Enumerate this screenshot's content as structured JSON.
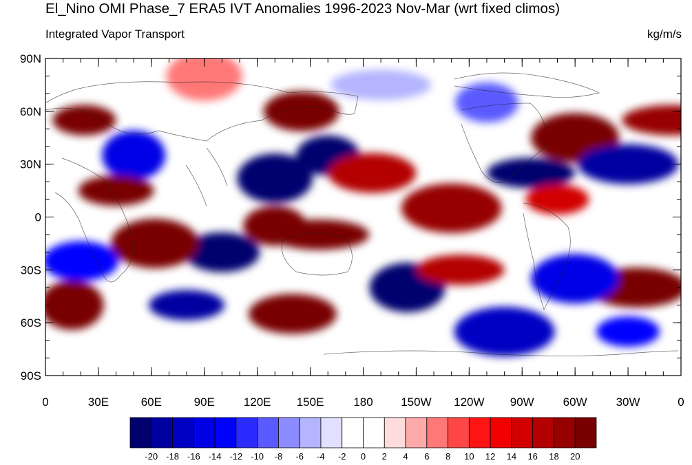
{
  "title": "El_Nino OMI Phase_7 ERA5 IVT Anomalies 1996-2023 Nov-Mar (wrt fixed climos)",
  "subtitle_left": "Integrated Vapor Transport",
  "subtitle_right": "kg/m/s",
  "lon_labels": [
    "0",
    "30E",
    "60E",
    "90E",
    "120E",
    "150E",
    "180",
    "150W",
    "120W",
    "90W",
    "60W",
    "30W",
    "0"
  ],
  "lat_labels": [
    "90N",
    "60N",
    "30N",
    "0",
    "30S",
    "60S",
    "90S"
  ],
  "colorbar": {
    "colors": [
      "#00006e",
      "#0000a0",
      "#0000c3",
      "#0000e6",
      "#0000ff",
      "#2b2bff",
      "#5a5aff",
      "#8c8cff",
      "#b4b4ff",
      "#e1e1ff",
      "#ffffff",
      "#ffffff",
      "#ffdcdc",
      "#ffaaaa",
      "#ff7878",
      "#ff4646",
      "#ff1414",
      "#f00000",
      "#d20000",
      "#b40000",
      "#960000",
      "#780000"
    ],
    "labels": [
      "-20",
      "-18",
      "-16",
      "-14",
      "-12",
      "-10",
      "-8",
      "-6",
      "-4",
      "-2",
      "0",
      "2",
      "4",
      "6",
      "8",
      "10",
      "12",
      "14",
      "16",
      "18",
      "20"
    ]
  },
  "chart_data": {
    "type": "heatmap",
    "title": "El_Nino OMI Phase_7 ERA5 IVT Anomalies 1996-2023 Nov-Mar (wrt fixed climos)",
    "subtitle": "Integrated Vapor Transport",
    "units": "kg/m/s",
    "xlim": [
      0,
      360
    ],
    "ylim": [
      -90,
      90
    ],
    "levels": [
      -20,
      -18,
      -16,
      -14,
      -12,
      -10,
      -8,
      -6,
      -4,
      -2,
      0,
      2,
      4,
      6,
      8,
      10,
      12,
      14,
      16,
      18,
      20
    ],
    "regions": [
      {
        "lon": 22,
        "lat": 55,
        "value": 22
      },
      {
        "lon": 145,
        "lat": 60,
        "value": 22
      },
      {
        "lon": 300,
        "lat": 45,
        "value": 20
      },
      {
        "lon": 355,
        "lat": 55,
        "value": 18
      },
      {
        "lon": 160,
        "lat": 35,
        "value": -22
      },
      {
        "lon": 130,
        "lat": 22,
        "value": -22
      },
      {
        "lon": 275,
        "lat": 25,
        "value": -22
      },
      {
        "lon": 330,
        "lat": 30,
        "value": -20
      },
      {
        "lon": 50,
        "lat": 35,
        "value": -16
      },
      {
        "lon": 40,
        "lat": 15,
        "value": 20
      },
      {
        "lon": 185,
        "lat": 25,
        "value": 16
      },
      {
        "lon": 230,
        "lat": 5,
        "value": 18
      },
      {
        "lon": 290,
        "lat": 10,
        "value": 14
      },
      {
        "lon": 100,
        "lat": -20,
        "value": -22
      },
      {
        "lon": 62,
        "lat": -15,
        "value": 22
      },
      {
        "lon": 155,
        "lat": -10,
        "value": 22
      },
      {
        "lon": 130,
        "lat": -5,
        "value": 20
      },
      {
        "lon": 205,
        "lat": -40,
        "value": -22
      },
      {
        "lon": 235,
        "lat": -30,
        "value": 16
      },
      {
        "lon": 335,
        "lat": -40,
        "value": 22
      },
      {
        "lon": 15,
        "lat": -50,
        "value": 22
      },
      {
        "lon": 80,
        "lat": -50,
        "value": -20
      },
      {
        "lon": 140,
        "lat": -55,
        "value": 20
      },
      {
        "lon": 260,
        "lat": -65,
        "value": -18
      },
      {
        "lon": 330,
        "lat": -65,
        "value": -14
      },
      {
        "lon": 20,
        "lat": -25,
        "value": -14
      },
      {
        "lon": 300,
        "lat": -35,
        "value": -16
      },
      {
        "lon": 190,
        "lat": 75,
        "value": -6
      },
      {
        "lon": 250,
        "lat": 65,
        "value": -10
      },
      {
        "lon": 90,
        "lat": 80,
        "value": 6
      }
    ]
  }
}
